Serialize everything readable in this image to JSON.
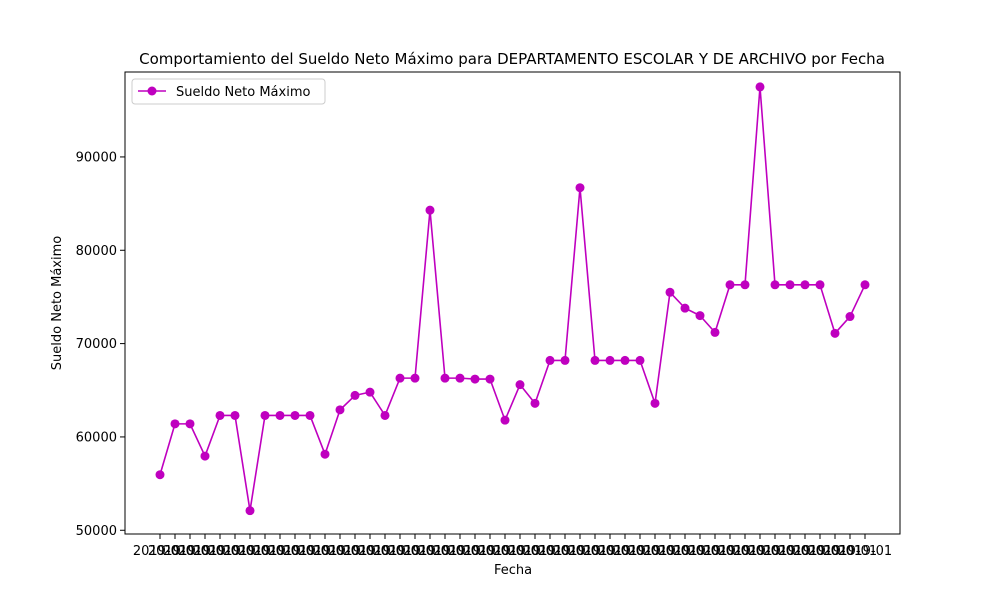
{
  "chart_data": {
    "type": "line",
    "title": "Comportamiento del Sueldo Neto Máximo para DEPARTAMENTO ESCOLAR Y DE ARCHIVO por Fecha",
    "xlabel": "Fecha",
    "ylabel": "Sueldo Neto Máximo",
    "ylim": [
      49600,
      99100
    ],
    "yticks": [
      50000,
      60000,
      70000,
      80000,
      90000
    ],
    "ytick_labels": [
      "50000",
      "60000",
      "70000",
      "80000",
      "90000"
    ],
    "x_tick_text": "2019-01",
    "grid": false,
    "legend": "top-left",
    "series": [
      {
        "name": "Sueldo Neto Máximo",
        "color": "#bf00bf",
        "marker": "circle",
        "values": [
          55950,
          61400,
          61400,
          57950,
          62300,
          62300,
          52100,
          62300,
          62300,
          62300,
          62300,
          58150,
          62900,
          64450,
          64800,
          62300,
          66300,
          66300,
          84300,
          66300,
          66300,
          66200,
          66200,
          61800,
          65600,
          63600,
          68200,
          68200,
          86700,
          68200,
          68200,
          68200,
          68200,
          63600,
          75500,
          73800,
          73000,
          71200,
          76300,
          76300,
          97500,
          76300,
          76300,
          76300,
          76300,
          71100,
          72900,
          76300
        ]
      }
    ]
  }
}
